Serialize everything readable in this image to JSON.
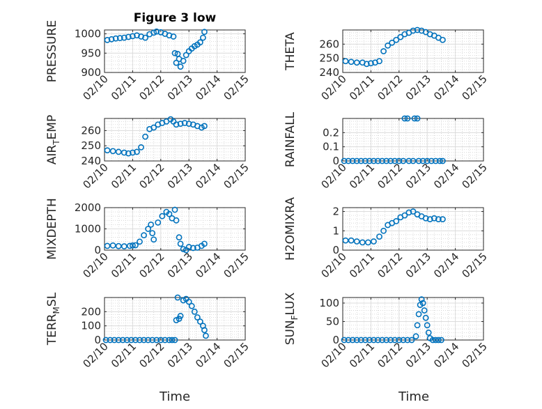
{
  "figure": {
    "title": "Figure 3 low",
    "xlabel": "Time"
  },
  "chart_data": [
    {
      "type": "scatter",
      "ylabel": "PRESSURE",
      "x_ticks": [
        "02/10",
        "02/11",
        "02/12",
        "02/13",
        "02/14",
        "02/15"
      ],
      "xlim": [
        0,
        5
      ],
      "ylim": [
        900,
        1010
      ],
      "y_ticks": [
        900,
        950,
        1000
      ],
      "grid": true,
      "marker_color": "#0072bd",
      "points": [
        [
          0.1,
          984
        ],
        [
          0.25,
          986
        ],
        [
          0.4,
          988
        ],
        [
          0.55,
          989
        ],
        [
          0.7,
          990
        ],
        [
          0.85,
          992
        ],
        [
          1.0,
          994
        ],
        [
          1.15,
          996
        ],
        [
          1.3,
          993
        ],
        [
          1.45,
          990
        ],
        [
          1.6,
          999
        ],
        [
          1.75,
          1003
        ],
        [
          1.85,
          1006
        ],
        [
          2.0,
          1004
        ],
        [
          2.15,
          1000
        ],
        [
          2.3,
          996
        ],
        [
          2.45,
          993
        ],
        [
          2.5,
          950
        ],
        [
          2.55,
          925
        ],
        [
          2.6,
          948
        ],
        [
          2.65,
          935
        ],
        [
          2.7,
          915
        ],
        [
          2.8,
          930
        ],
        [
          2.9,
          945
        ],
        [
          3.0,
          955
        ],
        [
          3.1,
          962
        ],
        [
          3.2,
          968
        ],
        [
          3.3,
          972
        ],
        [
          3.4,
          978
        ],
        [
          3.5,
          990
        ],
        [
          3.55,
          1005
        ]
      ]
    },
    {
      "type": "scatter",
      "ylabel": "THETA",
      "x_ticks": [
        "02/10",
        "02/11",
        "02/12",
        "02/13",
        "02/14",
        "02/15"
      ],
      "xlim": [
        0,
        5
      ],
      "ylim": [
        240,
        270
      ],
      "y_ticks": [
        240,
        250,
        260
      ],
      "grid": true,
      "marker_color": "#0072bd",
      "points": [
        [
          0.1,
          248
        ],
        [
          0.3,
          247.5
        ],
        [
          0.5,
          247
        ],
        [
          0.7,
          247
        ],
        [
          0.85,
          246
        ],
        [
          1.0,
          246.5
        ],
        [
          1.15,
          247
        ],
        [
          1.3,
          248
        ],
        [
          1.45,
          255
        ],
        [
          1.6,
          259
        ],
        [
          1.75,
          261
        ],
        [
          1.9,
          263
        ],
        [
          2.05,
          265
        ],
        [
          2.2,
          267
        ],
        [
          2.35,
          268
        ],
        [
          2.5,
          269.5
        ],
        [
          2.65,
          270
        ],
        [
          2.8,
          269.5
        ],
        [
          2.95,
          268.5
        ],
        [
          3.1,
          267
        ],
        [
          3.25,
          266
        ],
        [
          3.4,
          264.5
        ],
        [
          3.55,
          263
        ]
      ]
    },
    {
      "type": "scatter",
      "ylabel": "AIR_TEMP",
      "x_ticks": [
        "02/10",
        "02/11",
        "02/12",
        "02/13",
        "02/14",
        "02/15"
      ],
      "xlim": [
        0,
        5
      ],
      "ylim": [
        240,
        268
      ],
      "y_ticks": [
        240,
        250,
        260
      ],
      "grid": true,
      "marker_color": "#0072bd",
      "points": [
        [
          0.1,
          247
        ],
        [
          0.3,
          246.5
        ],
        [
          0.5,
          246
        ],
        [
          0.7,
          245.5
        ],
        [
          0.85,
          245
        ],
        [
          1.0,
          245.5
        ],
        [
          1.15,
          246
        ],
        [
          1.3,
          249
        ],
        [
          1.45,
          256
        ],
        [
          1.6,
          261
        ],
        [
          1.75,
          262
        ],
        [
          1.9,
          264
        ],
        [
          2.05,
          265
        ],
        [
          2.2,
          266
        ],
        [
          2.35,
          267.5
        ],
        [
          2.45,
          266
        ],
        [
          2.55,
          264
        ],
        [
          2.7,
          264.5
        ],
        [
          2.85,
          265
        ],
        [
          3.0,
          264.5
        ],
        [
          3.15,
          264
        ],
        [
          3.3,
          263
        ],
        [
          3.45,
          262
        ],
        [
          3.55,
          263
        ]
      ]
    },
    {
      "type": "scatter",
      "ylabel": "RAINFALL",
      "x_ticks": [
        "02/10",
        "02/11",
        "02/12",
        "02/13",
        "02/14",
        "02/15"
      ],
      "xlim": [
        0,
        5
      ],
      "ylim": [
        0,
        0.3
      ],
      "y_ticks": [
        0,
        0.1,
        0.2
      ],
      "grid": true,
      "marker_color": "#0072bd",
      "points": [
        [
          0.05,
          0
        ],
        [
          0.2,
          0
        ],
        [
          0.35,
          0
        ],
        [
          0.5,
          0
        ],
        [
          0.65,
          0
        ],
        [
          0.8,
          0
        ],
        [
          0.95,
          0
        ],
        [
          1.1,
          0
        ],
        [
          1.25,
          0
        ],
        [
          1.4,
          0
        ],
        [
          1.55,
          0
        ],
        [
          1.7,
          0
        ],
        [
          1.85,
          0
        ],
        [
          2.0,
          0
        ],
        [
          2.15,
          0
        ],
        [
          2.2,
          0.3
        ],
        [
          2.3,
          0.3
        ],
        [
          2.35,
          0
        ],
        [
          2.5,
          0
        ],
        [
          2.55,
          0.3
        ],
        [
          2.65,
          0.3
        ],
        [
          2.7,
          0
        ],
        [
          2.85,
          0
        ],
        [
          3.0,
          0
        ],
        [
          3.15,
          0
        ],
        [
          3.3,
          0
        ],
        [
          3.45,
          0
        ],
        [
          3.55,
          0
        ]
      ]
    },
    {
      "type": "scatter",
      "ylabel": "MIXDEPTH",
      "x_ticks": [
        "02/10",
        "02/11",
        "02/12",
        "02/13",
        "02/14",
        "02/15"
      ],
      "xlim": [
        0,
        5
      ],
      "ylim": [
        0,
        2000
      ],
      "y_ticks": [
        0,
        1000,
        2000
      ],
      "grid": true,
      "marker_color": "#0072bd",
      "points": [
        [
          0.1,
          200
        ],
        [
          0.3,
          220
        ],
        [
          0.5,
          190
        ],
        [
          0.7,
          180
        ],
        [
          0.9,
          200
        ],
        [
          1.0,
          220
        ],
        [
          1.1,
          230
        ],
        [
          1.25,
          400
        ],
        [
          1.4,
          700
        ],
        [
          1.55,
          1000
        ],
        [
          1.65,
          1200
        ],
        [
          1.7,
          800
        ],
        [
          1.75,
          500
        ],
        [
          1.9,
          1300
        ],
        [
          2.05,
          1600
        ],
        [
          2.2,
          1800
        ],
        [
          2.3,
          1700
        ],
        [
          2.4,
          1500
        ],
        [
          2.5,
          1900
        ],
        [
          2.55,
          1400
        ],
        [
          2.65,
          600
        ],
        [
          2.7,
          300
        ],
        [
          2.8,
          50
        ],
        [
          2.9,
          0
        ],
        [
          3.0,
          150
        ],
        [
          3.15,
          100
        ],
        [
          3.3,
          120
        ],
        [
          3.45,
          200
        ],
        [
          3.55,
          300
        ]
      ]
    },
    {
      "type": "scatter",
      "ylabel": "H2OMIXRA",
      "x_ticks": [
        "02/10",
        "02/11",
        "02/12",
        "02/13",
        "02/14",
        "02/15"
      ],
      "xlim": [
        0,
        5
      ],
      "ylim": [
        0,
        2.2
      ],
      "y_ticks": [
        0,
        1,
        2
      ],
      "grid": true,
      "marker_color": "#0072bd",
      "points": [
        [
          0.1,
          0.5
        ],
        [
          0.3,
          0.5
        ],
        [
          0.5,
          0.45
        ],
        [
          0.7,
          0.4
        ],
        [
          0.9,
          0.4
        ],
        [
          1.1,
          0.45
        ],
        [
          1.3,
          0.7
        ],
        [
          1.45,
          1.0
        ],
        [
          1.6,
          1.3
        ],
        [
          1.75,
          1.4
        ],
        [
          1.9,
          1.5
        ],
        [
          2.05,
          1.7
        ],
        [
          2.2,
          1.8
        ],
        [
          2.35,
          1.95
        ],
        [
          2.5,
          2.0
        ],
        [
          2.65,
          1.85
        ],
        [
          2.8,
          1.75
        ],
        [
          2.95,
          1.65
        ],
        [
          3.1,
          1.6
        ],
        [
          3.25,
          1.65
        ],
        [
          3.4,
          1.6
        ],
        [
          3.55,
          1.6
        ]
      ]
    },
    {
      "type": "scatter",
      "ylabel": "TERR_MSL",
      "x_ticks": [
        "02/10",
        "02/11",
        "02/12",
        "02/13",
        "02/14",
        "02/15"
      ],
      "xlim": [
        0,
        5
      ],
      "ylim": [
        0,
        300
      ],
      "y_ticks": [
        0,
        100,
        200
      ],
      "grid": true,
      "marker_color": "#0072bd",
      "points": [
        [
          0.05,
          0
        ],
        [
          0.2,
          0
        ],
        [
          0.35,
          0
        ],
        [
          0.5,
          0
        ],
        [
          0.65,
          0
        ],
        [
          0.8,
          0
        ],
        [
          0.95,
          0
        ],
        [
          1.1,
          0
        ],
        [
          1.25,
          0
        ],
        [
          1.4,
          0
        ],
        [
          1.55,
          0
        ],
        [
          1.7,
          0
        ],
        [
          1.85,
          0
        ],
        [
          2.0,
          0
        ],
        [
          2.15,
          0
        ],
        [
          2.3,
          0
        ],
        [
          2.4,
          0
        ],
        [
          2.5,
          0
        ],
        [
          2.55,
          140
        ],
        [
          2.6,
          300
        ],
        [
          2.65,
          150
        ],
        [
          2.7,
          170
        ],
        [
          2.8,
          280
        ],
        [
          2.9,
          290
        ],
        [
          3.0,
          270
        ],
        [
          3.1,
          240
        ],
        [
          3.2,
          200
        ],
        [
          3.3,
          160
        ],
        [
          3.4,
          130
        ],
        [
          3.5,
          100
        ],
        [
          3.55,
          70
        ],
        [
          3.6,
          30
        ]
      ]
    },
    {
      "type": "scatter",
      "ylabel": "SUN_FLUX",
      "x_ticks": [
        "02/10",
        "02/11",
        "02/12",
        "02/13",
        "02/14",
        "02/15"
      ],
      "xlim": [
        0,
        5
      ],
      "ylim": [
        0,
        115
      ],
      "y_ticks": [
        0,
        50,
        100
      ],
      "grid": true,
      "marker_color": "#0072bd",
      "points": [
        [
          0.05,
          0
        ],
        [
          0.2,
          0
        ],
        [
          0.35,
          0
        ],
        [
          0.5,
          0
        ],
        [
          0.65,
          0
        ],
        [
          0.8,
          0
        ],
        [
          0.95,
          0
        ],
        [
          1.1,
          0
        ],
        [
          1.25,
          0
        ],
        [
          1.4,
          0
        ],
        [
          1.55,
          0
        ],
        [
          1.7,
          0
        ],
        [
          1.85,
          0
        ],
        [
          2.0,
          0
        ],
        [
          2.15,
          0
        ],
        [
          2.3,
          0
        ],
        [
          2.45,
          0
        ],
        [
          2.6,
          10
        ],
        [
          2.65,
          40
        ],
        [
          2.7,
          70
        ],
        [
          2.75,
          95
        ],
        [
          2.8,
          110
        ],
        [
          2.85,
          100
        ],
        [
          2.9,
          80
        ],
        [
          2.95,
          60
        ],
        [
          3.0,
          40
        ],
        [
          3.05,
          20
        ],
        [
          3.1,
          5
        ],
        [
          3.2,
          0
        ],
        [
          3.3,
          0
        ],
        [
          3.4,
          0
        ],
        [
          3.5,
          0
        ]
      ]
    }
  ]
}
